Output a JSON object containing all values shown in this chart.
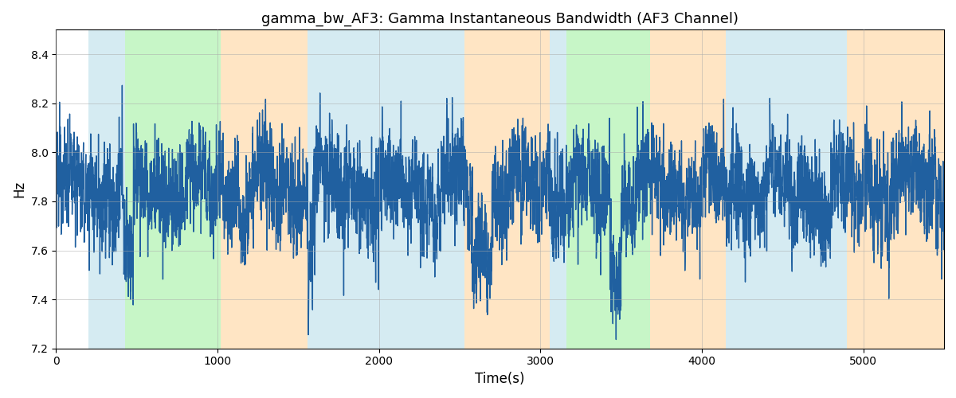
{
  "title": "gamma_bw_AF3: Gamma Instantaneous Bandwidth (AF3 Channel)",
  "xlabel": "Time(s)",
  "ylabel": "Hz",
  "ylim": [
    7.2,
    8.5
  ],
  "xlim": [
    0,
    5500
  ],
  "line_color": "#2060a0",
  "line_width": 1.0,
  "grid_color": "#aaaaaa",
  "regions": [
    {
      "start": 200,
      "end": 430,
      "color": "#add8e6",
      "alpha": 0.5
    },
    {
      "start": 430,
      "end": 1020,
      "color": "#90ee90",
      "alpha": 0.5
    },
    {
      "start": 1020,
      "end": 1560,
      "color": "#ffd59e",
      "alpha": 0.6
    },
    {
      "start": 1560,
      "end": 1900,
      "color": "#add8e6",
      "alpha": 0.5
    },
    {
      "start": 1900,
      "end": 2530,
      "color": "#add8e6",
      "alpha": 0.5
    },
    {
      "start": 2530,
      "end": 3060,
      "color": "#ffd59e",
      "alpha": 0.6
    },
    {
      "start": 3060,
      "end": 3160,
      "color": "#add8e6",
      "alpha": 0.5
    },
    {
      "start": 3160,
      "end": 3680,
      "color": "#90ee90",
      "alpha": 0.5
    },
    {
      "start": 3680,
      "end": 4150,
      "color": "#ffd59e",
      "alpha": 0.6
    },
    {
      "start": 4150,
      "end": 4900,
      "color": "#add8e6",
      "alpha": 0.5
    },
    {
      "start": 4900,
      "end": 5500,
      "color": "#ffd59e",
      "alpha": 0.6
    }
  ],
  "xticks": [
    0,
    1000,
    2000,
    3000,
    4000,
    5000
  ],
  "yticks": [
    7.2,
    7.4,
    7.6,
    7.8,
    8.0,
    8.2,
    8.4
  ],
  "title_fontsize": 13,
  "axis_fontsize": 12,
  "figsize": [
    12.0,
    5.0
  ],
  "dpi": 100
}
